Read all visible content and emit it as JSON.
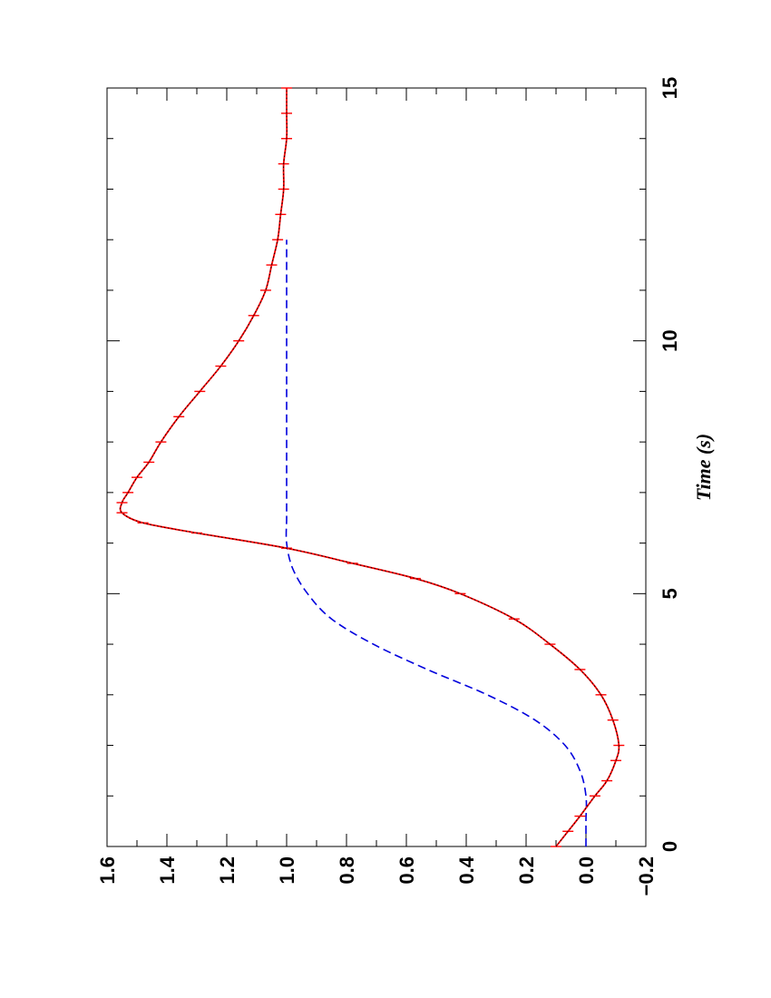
{
  "chart_data": {
    "type": "line",
    "orientation": "rotated-90-ccw",
    "title": "",
    "xlabel": "Time (s)",
    "ylabel": "",
    "xlim": [
      0,
      15
    ],
    "ylim": [
      -0.2,
      1.6
    ],
    "x_ticks": [
      "0",
      "5",
      "10",
      "15"
    ],
    "y_ticks": [
      "−0.2",
      "0.0",
      "0.2",
      "0.4",
      "0.6",
      "0.8",
      "1.0",
      "1.2",
      "1.4",
      "1.6"
    ],
    "grid": false,
    "legend": "none",
    "series": [
      {
        "style": "dashed",
        "color": "#0000dd",
        "x": [
          0,
          0.5,
          1.0,
          1.5,
          2.0,
          2.5,
          3.0,
          3.5,
          4.0,
          4.5,
          5.0,
          5.5,
          6.0,
          6.5,
          7.0,
          8.0,
          10.0,
          12.0
        ],
        "y": [
          0.0,
          0.0,
          0.0,
          0.02,
          0.07,
          0.17,
          0.33,
          0.53,
          0.71,
          0.85,
          0.93,
          0.98,
          1.0,
          1.0,
          1.0,
          1.0,
          1.0,
          1.0
        ]
      },
      {
        "style": "solid-with-error-bars",
        "color": "#ff0000",
        "x": [
          0,
          0.3,
          0.6,
          1.0,
          1.3,
          1.7,
          2.0,
          2.5,
          3.0,
          3.5,
          4.0,
          4.5,
          5.0,
          5.3,
          5.6,
          5.9,
          6.2,
          6.4,
          6.6,
          6.8,
          7.0,
          7.3,
          7.6,
          8.0,
          8.5,
          9.0,
          9.5,
          10.0,
          10.5,
          11.0,
          11.5,
          12.0,
          12.5,
          13.0,
          13.5,
          14.0,
          14.5,
          15.0
        ],
        "y": [
          0.1,
          0.06,
          0.02,
          -0.03,
          -0.07,
          -0.1,
          -0.11,
          -0.09,
          -0.05,
          0.02,
          0.12,
          0.24,
          0.42,
          0.57,
          0.78,
          1.0,
          1.3,
          1.48,
          1.55,
          1.55,
          1.53,
          1.5,
          1.46,
          1.42,
          1.36,
          1.29,
          1.22,
          1.16,
          1.11,
          1.07,
          1.05,
          1.03,
          1.02,
          1.01,
          1.01,
          1.0,
          1.0,
          1.0
        ]
      },
      {
        "style": "dotted",
        "color": "#000000",
        "x": [
          0,
          0.3,
          0.6,
          1.0,
          1.3,
          1.7,
          2.0,
          2.5,
          3.0,
          3.5,
          4.0,
          4.5,
          5.0,
          5.3,
          5.6,
          5.9,
          6.2,
          6.4,
          6.6,
          6.8,
          7.0,
          7.3,
          7.6,
          8.0,
          8.5,
          9.0,
          9.5,
          10.0,
          10.5,
          11.0,
          11.5,
          12.0,
          12.5,
          13.0,
          13.5,
          14.0,
          14.5,
          15.0
        ],
        "y": [
          0.1,
          0.06,
          0.02,
          -0.03,
          -0.07,
          -0.1,
          -0.11,
          -0.09,
          -0.05,
          0.02,
          0.12,
          0.24,
          0.42,
          0.57,
          0.78,
          1.0,
          1.3,
          1.48,
          1.55,
          1.55,
          1.53,
          1.5,
          1.46,
          1.42,
          1.36,
          1.29,
          1.22,
          1.16,
          1.11,
          1.07,
          1.05,
          1.03,
          1.02,
          1.01,
          1.01,
          1.0,
          1.0,
          1.0
        ]
      }
    ]
  }
}
